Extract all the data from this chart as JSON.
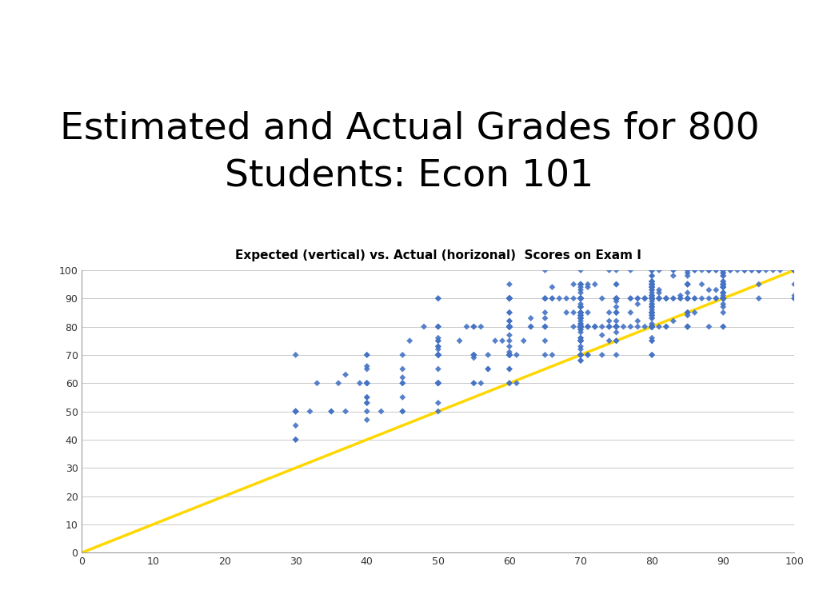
{
  "title": "Estimated and Actual Grades for 800\nStudents: Econ 101",
  "subtitle": "Expected (vertical) vs. Actual (horizonal)  Scores on Exam I",
  "title_fontsize": 34,
  "title_fontweight": "normal",
  "subtitle_fontsize": 11,
  "subtitle_fontweight": "bold",
  "xlim": [
    0,
    100
  ],
  "ylim": [
    0,
    100
  ],
  "xticks": [
    0,
    10,
    20,
    30,
    40,
    50,
    60,
    70,
    80,
    90,
    100
  ],
  "yticks": [
    0,
    10,
    20,
    30,
    40,
    50,
    60,
    70,
    80,
    90,
    100
  ],
  "scatter_color": "#4472C4",
  "line_color": "#FFD700",
  "line_width": 2.5,
  "marker": "D",
  "marker_size": 16,
  "background_color": "#FFFFFF",
  "grid_color": "#BBBBBB",
  "grid_alpha": 0.8,
  "seed": 42,
  "n_students": 800
}
